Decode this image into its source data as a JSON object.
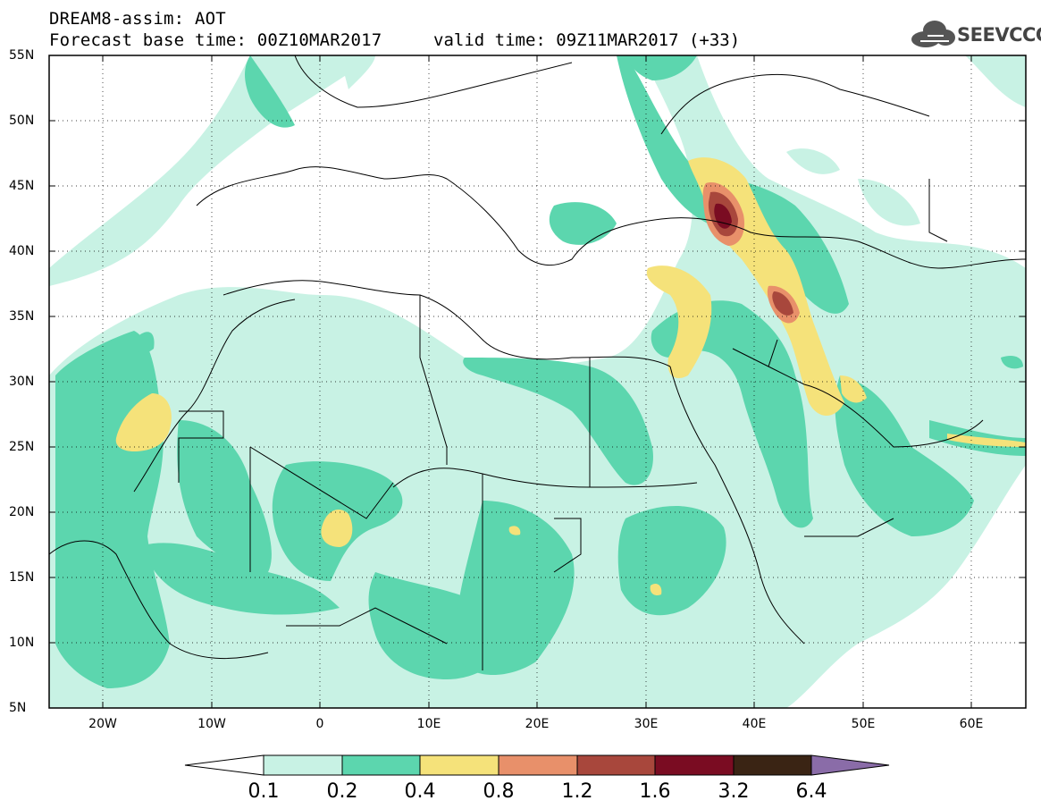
{
  "header": {
    "line1": "DREAM8-assim: AOT",
    "line2": "Forecast base time: 00Z10MAR2017",
    "valid": "valid time: 09Z11MAR2017 (+33)",
    "logo": "SEEVCCC",
    "logo_icon": "cloud-icon"
  },
  "map": {
    "variable": "AOT",
    "projection": "lat-lon",
    "lon_range": [
      -25,
      65
    ],
    "lat_range": [
      5,
      55
    ],
    "lat_labels": [
      "55N",
      "50N",
      "45N",
      "40N",
      "35N",
      "30N",
      "25N",
      "20N",
      "15N",
      "10N",
      "5N"
    ],
    "lon_labels": [
      "20W",
      "10W",
      "0",
      "10E",
      "20E",
      "30E",
      "40E",
      "50E",
      "60E"
    ],
    "grid": "dotted"
  },
  "colorbar": {
    "levels": [
      "0.1",
      "0.2",
      "0.4",
      "0.8",
      "1.2",
      "1.6",
      "3.2",
      "6.4"
    ],
    "colors": [
      "#ffffff",
      "#c8f2e4",
      "#5cd6ae",
      "#f5e27a",
      "#e8906a",
      "#a8473c",
      "#7a0c22",
      "#3a2414",
      "#8a6ca8"
    ]
  }
}
